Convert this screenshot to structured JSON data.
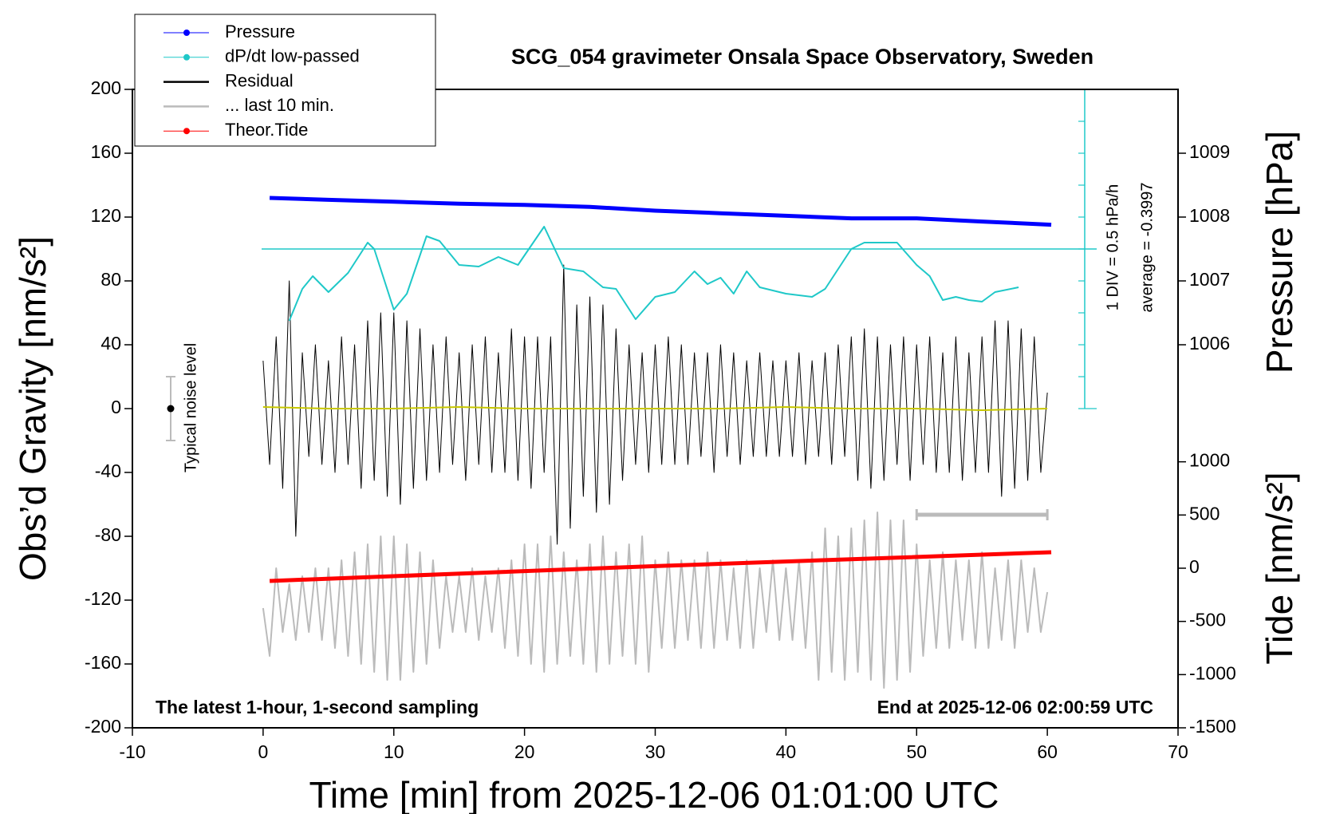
{
  "chart_data": {
    "type": "line",
    "title": "SCG_054 gravimeter Onsala Space Observatory, Sweden",
    "xlabel": "Time [min] from 2025-12-06 01:01:00 UTC",
    "ylabel": "Obs’d Gravity [nm/s²]",
    "y2label": "Pressure [hPa]",
    "y3label": "Tide [nm/s²]",
    "annotations": [
      "The latest 1-hour, 1-second sampling",
      "End at 2025-12-06 02:00:59 UTC",
      "Typical noise level",
      "1 DIV = 0.5 hPa/h"
    ],
    "dpdt_average": {
      "value": -0.3997,
      "label": "average = -0.3997"
    },
    "noise_level": {
      "low": -20,
      "high": 20
    },
    "last_10_min_span": [
      50,
      60
    ],
    "xlim": [
      -10,
      70
    ],
    "xticks": [
      -10,
      0,
      10,
      20,
      30,
      40,
      50,
      60,
      70
    ],
    "ylim": [
      -200,
      200
    ],
    "yticks": [
      -200,
      -160,
      -120,
      -80,
      -40,
      0,
      40,
      80,
      120,
      160,
      200
    ],
    "y2lim": [
      1000,
      1010
    ],
    "y2ticks": [
      1006,
      1007,
      1008,
      1009
    ],
    "y3lim": [
      -1500,
      4500
    ],
    "y3ticks": [
      -1500,
      -1000,
      -500,
      0,
      500,
      1000
    ],
    "y4lim": [
      -7.8997,
      2.1003
    ],
    "y4ticks": [
      -2.8997,
      -2.3997,
      -1.8997,
      -1.3997,
      -0.8997,
      -0.3997,
      0.1003,
      0.6003,
      1.1003,
      1.6003,
      2.1003
    ],
    "grid": false,
    "legend": "upper left",
    "series": [
      {
        "name": "Pressure",
        "color": "#0000ff",
        "marker": true,
        "axis": "y2",
        "x": [
          0.5,
          5,
          10,
          15,
          20,
          25,
          30,
          35,
          40,
          45,
          50,
          55,
          60.3
        ],
        "values": [
          1008.3,
          1008.27,
          1008.24,
          1008.21,
          1008.19,
          1008.16,
          1008.1,
          1008.06,
          1008.02,
          1007.98,
          1007.98,
          1007.93,
          1007.88
        ]
      },
      {
        "name": "dP/dt low-passed",
        "color": "#1fc8c8",
        "marker": true,
        "axis": "y4",
        "x": [
          2,
          3,
          3.8,
          5,
          6.5,
          8,
          8.5,
          10,
          11,
          12.5,
          13.5,
          15,
          16.5,
          18,
          19.5,
          21.5,
          23,
          24.5,
          26,
          27,
          28.5,
          30,
          31.5,
          33,
          34,
          35,
          36,
          37,
          38,
          40,
          42,
          43,
          45,
          46,
          48.5,
          50,
          51,
          52,
          53,
          54,
          55,
          56,
          57.8
        ],
        "values": [
          -1.5247,
          -1.0247,
          -0.8247,
          -1.0747,
          -0.7747,
          -0.2997,
          -0.3997,
          -1.3497,
          -1.0997,
          -0.1997,
          -0.2747,
          -0.6497,
          -0.6747,
          -0.5247,
          -0.6497,
          -0.0497,
          -0.6997,
          -0.7497,
          -0.9997,
          -1.0247,
          -1.4997,
          -1.1497,
          -1.0747,
          -0.7497,
          -0.9497,
          -0.8497,
          -1.0997,
          -0.7497,
          -0.9997,
          -1.0997,
          -1.1497,
          -1.0247,
          -0.3997,
          -0.2997,
          -0.2997,
          -0.6497,
          -0.8247,
          -1.1997,
          -1.1497,
          -1.1997,
          -1.2247,
          -1.0747,
          -0.9997
        ]
      },
      {
        "name": "Residual",
        "color": "#000000",
        "marker": false,
        "axis": "y",
        "x": [
          0,
          0.5,
          1,
          1.5,
          2,
          2.5,
          3,
          3.5,
          4,
          4.5,
          5,
          5.5,
          6,
          6.5,
          7,
          7.5,
          8,
          8.5,
          9,
          9.5,
          10,
          10.5,
          11,
          11.5,
          12,
          12.5,
          13,
          13.5,
          14,
          14.5,
          15,
          15.5,
          16,
          16.5,
          17,
          17.5,
          18,
          18.5,
          19,
          19.5,
          20,
          20.5,
          21,
          21.5,
          22,
          22.5,
          23,
          23.5,
          24,
          24.5,
          25,
          25.5,
          26,
          26.5,
          27,
          27.5,
          28,
          28.5,
          29,
          29.5,
          30,
          30.5,
          31,
          31.5,
          32,
          32.5,
          33,
          33.5,
          34,
          34.5,
          35,
          35.5,
          36,
          36.5,
          37,
          37.5,
          38,
          38.5,
          39,
          39.5,
          40,
          40.5,
          41,
          41.5,
          42,
          42.5,
          43,
          43.5,
          44,
          44.5,
          45,
          45.5,
          46,
          46.5,
          47,
          47.5,
          48,
          48.5,
          49,
          49.5,
          50,
          50.5,
          51,
          51.5,
          52,
          52.5,
          53,
          53.5,
          54,
          54.5,
          55,
          55.5,
          56,
          56.5,
          57,
          57.5,
          58,
          58.5,
          59,
          59.5,
          60
        ],
        "values": [
          30,
          -35,
          45,
          -50,
          80,
          -80,
          35,
          -30,
          40,
          -35,
          30,
          -40,
          45,
          -35,
          40,
          -50,
          55,
          -45,
          60,
          -55,
          60,
          -60,
          55,
          -50,
          50,
          -45,
          40,
          -40,
          45,
          -35,
          35,
          -45,
          40,
          -35,
          45,
          -40,
          35,
          -40,
          50,
          -45,
          45,
          -50,
          45,
          -40,
          45,
          -85,
          90,
          -75,
          65,
          -55,
          70,
          -65,
          65,
          -60,
          50,
          -45,
          40,
          -35,
          35,
          -40,
          40,
          -35,
          45,
          -35,
          40,
          -35,
          35,
          -30,
          35,
          -40,
          40,
          -30,
          35,
          -35,
          30,
          -30,
          35,
          -30,
          30,
          -30,
          30,
          -30,
          35,
          -35,
          30,
          -30,
          35,
          -35,
          40,
          -30,
          45,
          -45,
          50,
          -50,
          45,
          -45,
          40,
          -35,
          45,
          -45,
          40,
          -35,
          45,
          -40,
          35,
          -40,
          45,
          -45,
          35,
          -40,
          45,
          -40,
          55,
          -55,
          55,
          -50,
          50,
          -45,
          45,
          -40,
          10
        ]
      },
      {
        "name": "... last 10 min.",
        "color": "#bbbbbb",
        "marker": false,
        "axis": "y",
        "x": [
          0,
          0.5,
          1,
          1.5,
          2,
          2.5,
          3,
          3.5,
          4,
          4.5,
          5,
          5.5,
          6,
          6.5,
          7,
          7.5,
          8,
          8.5,
          9,
          9.5,
          10,
          10.5,
          11,
          11.5,
          12,
          12.5,
          13,
          13.5,
          14,
          14.5,
          15,
          15.5,
          16,
          16.5,
          17,
          17.5,
          18,
          18.5,
          19,
          19.5,
          20,
          20.5,
          21,
          21.5,
          22,
          22.5,
          23,
          23.5,
          24,
          24.5,
          25,
          25.5,
          26,
          26.5,
          27,
          27.5,
          28,
          28.5,
          29,
          29.5,
          30,
          30.5,
          31,
          31.5,
          32,
          32.5,
          33,
          33.5,
          34,
          34.5,
          35,
          35.5,
          36,
          36.5,
          37,
          37.5,
          38,
          38.5,
          39,
          39.5,
          40,
          40.5,
          41,
          41.5,
          42,
          42.5,
          43,
          43.5,
          44,
          44.5,
          45,
          45.5,
          46,
          46.5,
          47,
          47.5,
          48,
          48.5,
          49,
          49.5,
          50,
          50.5,
          51,
          51.5,
          52,
          52.5,
          53,
          53.5,
          54,
          54.5,
          55,
          55.5,
          56,
          56.5,
          57,
          57.5,
          58,
          58.5,
          59,
          59.5,
          60
        ],
        "values": [
          -125,
          -155,
          -100,
          -140,
          -110,
          -145,
          -105,
          -140,
          -100,
          -145,
          -100,
          -150,
          -95,
          -155,
          -90,
          -160,
          -85,
          -165,
          -80,
          -170,
          -80,
          -170,
          -85,
          -165,
          -90,
          -160,
          -95,
          -150,
          -105,
          -140,
          -105,
          -140,
          -100,
          -145,
          -105,
          -140,
          -100,
          -150,
          -95,
          -155,
          -85,
          -160,
          -85,
          -165,
          -80,
          -160,
          -90,
          -155,
          -95,
          -160,
          -85,
          -165,
          -80,
          -160,
          -90,
          -155,
          -85,
          -160,
          -80,
          -165,
          -95,
          -150,
          -90,
          -150,
          -95,
          -145,
          -95,
          -150,
          -90,
          -150,
          -95,
          -145,
          -100,
          -150,
          -95,
          -150,
          -100,
          -140,
          -95,
          -145,
          -100,
          -145,
          -95,
          -150,
          -90,
          -170,
          -75,
          -165,
          -80,
          -170,
          -75,
          -165,
          -70,
          -170,
          -65,
          -175,
          -70,
          -170,
          -70,
          -165,
          -85,
          -155,
          -95,
          -150,
          -90,
          -150,
          -95,
          -145,
          -95,
          -150,
          -90,
          -150,
          -100,
          -145,
          -95,
          -150,
          -95,
          -140,
          -100,
          -140,
          -115
        ]
      },
      {
        "name": "Theor.Tide",
        "color": "#ff0000",
        "marker": true,
        "axis": "y3",
        "x": [
          0.5,
          30,
          60.3
        ],
        "values": [
          -120,
          20,
          150
        ]
      },
      {
        "color": "#c8c800",
        "marker": false,
        "axis": "y",
        "x": [
          0,
          5,
          10,
          15,
          20,
          25,
          30,
          35,
          40,
          45,
          50,
          55,
          60
        ],
        "values": [
          1,
          0,
          0,
          1,
          0,
          0,
          0,
          0,
          1,
          0,
          0,
          -1,
          0
        ]
      }
    ]
  }
}
